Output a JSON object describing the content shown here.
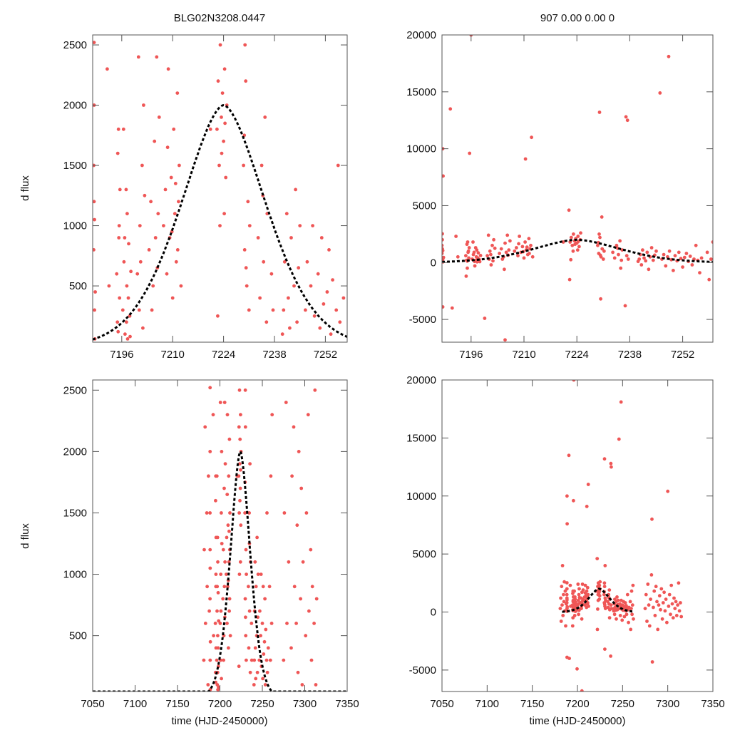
{
  "chart_data": [
    {
      "type": "scatter",
      "title": "BLG02N3208.0447",
      "xlabel": "",
      "ylabel": "d flux",
      "xlim": [
        7188,
        7258
      ],
      "ylim": [
        33,
        2583
      ],
      "xticks": [
        7196,
        7210,
        7224,
        7238,
        7252
      ],
      "yticks": [
        500,
        1000,
        1500,
        2000,
        2500
      ],
      "grid": false
    },
    {
      "type": "scatter",
      "title": "907  0.00  0.00  0",
      "xlabel": "",
      "ylabel": "",
      "xlim": [
        7188.3,
        7260
      ],
      "ylim": [
        -7000,
        20000
      ],
      "xticks": [
        7196,
        7210,
        7224,
        7238,
        7252
      ],
      "yticks": [
        -5000,
        0,
        5000,
        10000,
        15000,
        20000
      ],
      "grid": false
    },
    {
      "type": "scatter",
      "title": "",
      "xlabel": "time (HJD-2450000)",
      "ylabel": "d flux",
      "xlim": [
        7050,
        7350
      ],
      "ylim": [
        45,
        2583
      ],
      "xticks": [
        7050,
        7100,
        7150,
        7200,
        7250,
        7300,
        7350
      ],
      "yticks": [
        500,
        1000,
        1500,
        2000,
        2500
      ],
      "grid": false
    },
    {
      "type": "scatter",
      "title": "",
      "xlabel": "time (HJD-2450000)",
      "ylabel": "",
      "xlim": [
        7050,
        7350
      ],
      "ylim": [
        -6850,
        20000
      ],
      "xticks": [
        7050,
        7100,
        7150,
        7200,
        7250,
        7300,
        7350
      ],
      "yticks": [
        -5000,
        0,
        5000,
        10000,
        15000,
        20000
      ],
      "grid": false
    }
  ],
  "model": {
    "t0": 7224,
    "peak": 2000,
    "width": 17,
    "shape": 1.7,
    "t_start": 7183,
    "t_end": 7262,
    "style": "dashed"
  },
  "colors": {
    "points": "#ef5656",
    "model": "#000000",
    "axes": "#555555"
  },
  "points": [
    [
      7181,
      300
    ],
    [
      7181.5,
      1200
    ],
    [
      7182,
      -800
    ],
    [
      7182.5,
      2200
    ],
    [
      7183,
      600
    ],
    [
      7183.5,
      4000
    ],
    [
      7184,
      -300
    ],
    [
      7184.5,
      1500
    ],
    [
      7185,
      900
    ],
    [
      7185.5,
      2600
    ],
    [
      7186,
      100
    ],
    [
      7186.5,
      1800
    ],
    [
      7187,
      -1200
    ],
    [
      7187.5,
      700
    ],
    [
      7188.3,
      800
    ],
    [
      7188.4,
      1200
    ],
    [
      7188.5,
      300
    ],
    [
      7188.4,
      2520
    ],
    [
      7188.6,
      60
    ],
    [
      7188.3,
      1500
    ],
    [
      7188.5,
      -3900
    ],
    [
      7188.5,
      10000
    ],
    [
      7188.6,
      7600
    ],
    [
      7188.4,
      2000
    ],
    [
      7188.7,
      450
    ],
    [
      7188.5,
      1050
    ],
    [
      7190.5,
      13500
    ],
    [
      7191,
      -4000
    ],
    [
      7192,
      2300
    ],
    [
      7192.5,
      500
    ],
    [
      7194.6,
      600
    ],
    [
      7194.8,
      200
    ],
    [
      7195.0,
      -500
    ],
    [
      7195.2,
      900
    ],
    [
      7194.9,
      1600
    ],
    [
      7195.4,
      400
    ],
    [
      7195.6,
      9600
    ],
    [
      7195.1,
      1800
    ],
    [
      7194.7,
      -1200
    ],
    [
      7195.3,
      1000
    ],
    [
      7195.0,
      120
    ],
    [
      7195.5,
      1300
    ],
    [
      7196.3,
      300
    ],
    [
      7196.6,
      700
    ],
    [
      7196.9,
      100
    ],
    [
      7197.2,
      1300
    ],
    [
      7197.4,
      500
    ],
    [
      7196.5,
      1800
    ],
    [
      7197.0,
      -300
    ],
    [
      7197.3,
      200
    ],
    [
      7196.8,
      900
    ],
    [
      7197.5,
      1100
    ],
    [
      7196.0,
      20000
    ],
    [
      7197.8,
      400
    ],
    [
      7197.6,
      60
    ],
    [
      7197.9,
      850
    ],
    [
      7198.2,
      250
    ],
    [
      7198.5,
      620
    ],
    [
      7198.3,
      80
    ],
    [
      7199.6,
      -4900
    ],
    [
      7200.3,
      600
    ],
    [
      7200.6,
      2400
    ],
    [
      7201.0,
      1000
    ],
    [
      7201.3,
      -200
    ],
    [
      7200.8,
      300
    ],
    [
      7201.6,
      1500
    ],
    [
      7201.2,
      700
    ],
    [
      7202.0,
      2000
    ],
    [
      7201.8,
      150
    ],
    [
      7202.3,
      1250
    ],
    [
      7203.5,
      800
    ],
    [
      7204.0,
      1200
    ],
    [
      7204.3,
      300
    ],
    [
      7204.8,
      -600
    ],
    [
      7205.0,
      1700
    ],
    [
      7205.3,
      900
    ],
    [
      7205.6,
      2400
    ],
    [
      7204.6,
      500
    ],
    [
      7205.0,
      -6800
    ],
    [
      7206.0,
      1100
    ],
    [
      7205.8,
      650
    ],
    [
      7206.3,
      1900
    ],
    [
      7207.5,
      1000
    ],
    [
      7208.0,
      1300
    ],
    [
      7208.4,
      600
    ],
    [
      7208.8,
      2300
    ],
    [
      7209.2,
      900
    ],
    [
      7209.6,
      1400
    ],
    [
      7210.0,
      400
    ],
    [
      7210.3,
      1800
    ],
    [
      7210.6,
      1100
    ],
    [
      7211.0,
      700
    ],
    [
      7211.3,
      2100
    ],
    [
      7211.6,
      1200
    ],
    [
      7210.4,
      9100
    ],
    [
      7212.0,
      11000
    ],
    [
      7212.3,
      500
    ],
    [
      7211.8,
      1500
    ],
    [
      7209.8,
      950
    ],
    [
      7210.8,
      1350
    ],
    [
      7211.4,
      800
    ],
    [
      7208.6,
      1650
    ],
    [
      7220.4,
      1800
    ],
    [
      7222.2,
      1800
    ],
    [
      7222.5,
      2200
    ],
    [
      7222.8,
      1500
    ],
    [
      7223.1,
      2500
    ],
    [
      7223.4,
      1900
    ],
    [
      7223.7,
      2100
    ],
    [
      7224.0,
      1700
    ],
    [
      7224.3,
      2300
    ],
    [
      7224.6,
      1400
    ],
    [
      7224.9,
      2000
    ],
    [
      7223.0,
      1000
    ],
    [
      7222.4,
      250
    ],
    [
      7224.2,
      1100
    ],
    [
      7225.0,
      2600
    ],
    [
      7221.9,
      4600
    ],
    [
      7222.1,
      -1500
    ],
    [
      7223.5,
      1600
    ],
    [
      7224.4,
      1850
    ],
    [
      7229.5,
      1500
    ],
    [
      7229.8,
      800
    ],
    [
      7230.1,
      2200
    ],
    [
      7230.4,
      500
    ],
    [
      7230.7,
      1200
    ],
    [
      7231.0,
      300
    ],
    [
      7230.0,
      13200
    ],
    [
      7230.3,
      -3200
    ],
    [
      7230.6,
      4000
    ],
    [
      7229.9,
      2500
    ],
    [
      7231.2,
      1000
    ],
    [
      7230.2,
      650
    ],
    [
      7229.7,
      1750
    ],
    [
      7233.5,
      900
    ],
    [
      7234.0,
      400
    ],
    [
      7234.5,
      1500
    ],
    [
      7235.0,
      700
    ],
    [
      7235.4,
      1900
    ],
    [
      7235.8,
      200
    ],
    [
      7236.0,
      1100
    ],
    [
      7235.6,
      -500
    ],
    [
      7234.8,
      1250
    ],
    [
      7236.8,
      -3800
    ],
    [
      7237.0,
      12800
    ],
    [
      7237.4,
      12500
    ],
    [
      7237.2,
      600
    ],
    [
      7237.6,
      300
    ],
    [
      7240.5,
      300
    ],
    [
      7240.8,
      700
    ],
    [
      7241.1,
      -200
    ],
    [
      7241.4,
      1100
    ],
    [
      7241.8,
      400
    ],
    [
      7242.2,
      150
    ],
    [
      7242.6,
      900
    ],
    [
      7243.0,
      -600
    ],
    [
      7243.4,
      500
    ],
    [
      7243.8,
      1300
    ],
    [
      7244.2,
      200
    ],
    [
      7244.6,
      650
    ],
    [
      7245.0,
      1000
    ],
    [
      7240.2,
      100
    ],
    [
      7246.0,
      14900
    ],
    [
      7246.5,
      300
    ],
    [
      7247.0,
      700
    ],
    [
      7247.5,
      -300
    ],
    [
      7248.0,
      500
    ],
    [
      7248.3,
      18100
    ],
    [
      7248.5,
      1000
    ],
    [
      7249.0,
      250
    ],
    [
      7249.5,
      -700
    ],
    [
      7250.0,
      600
    ],
    [
      7250.5,
      150
    ],
    [
      7251.0,
      900
    ],
    [
      7251.5,
      350
    ],
    [
      7252.0,
      -400
    ],
    [
      7252.5,
      450
    ],
    [
      7253.0,
      800
    ],
    [
      7253.5,
      100
    ],
    [
      7254.0,
      550
    ],
    [
      7254.5,
      -200
    ],
    [
      7255.0,
      300
    ],
    [
      7255.5,
      1500
    ],
    [
      7256.0,
      200
    ],
    [
      7256.5,
      -900
    ],
    [
      7257.0,
      400
    ],
    [
      7258.5,
      900
    ],
    [
      7259,
      -1500
    ],
    [
      7259.5,
      300
    ],
    [
      7260,
      1800
    ],
    [
      7260.5,
      -200
    ],
    [
      7261,
      600
    ],
    [
      7261.5,
      2300
    ],
    [
      7262,
      -600
    ],
    [
      7275,
      300
    ],
    [
      7276,
      1500
    ],
    [
      7277,
      -800
    ],
    [
      7278,
      2400
    ],
    [
      7279,
      600
    ],
    [
      7280,
      -1200
    ],
    [
      7281,
      1100
    ],
    [
      7282,
      3200
    ],
    [
      7282.5,
      8000
    ],
    [
      7283,
      -4300
    ],
    [
      7284,
      400
    ],
    [
      7285,
      1800
    ],
    [
      7286,
      -300
    ],
    [
      7287,
      2200
    ],
    [
      7288,
      900
    ],
    [
      7289,
      -1500
    ],
    [
      7290,
      600
    ],
    [
      7291,
      1400
    ],
    [
      7292,
      200
    ],
    [
      7293,
      2000
    ],
    [
      7294,
      -600
    ],
    [
      7295,
      800
    ],
    [
      7296,
      1700
    ],
    [
      7297,
      100
    ],
    [
      7298,
      1100
    ],
    [
      7299,
      -900
    ],
    [
      7300,
      10400
    ],
    [
      7301,
      500
    ],
    [
      7302,
      1500
    ],
    [
      7303,
      -200
    ],
    [
      7304,
      2300
    ],
    [
      7305,
      700
    ],
    [
      7306,
      -500
    ],
    [
      7307,
      1200
    ],
    [
      7308,
      300
    ],
    [
      7309,
      900
    ],
    [
      7310,
      -300
    ],
    [
      7311,
      600
    ],
    [
      7312,
      2500
    ],
    [
      7313,
      100
    ],
    [
      7314,
      800
    ],
    [
      7315,
      -400
    ]
  ]
}
